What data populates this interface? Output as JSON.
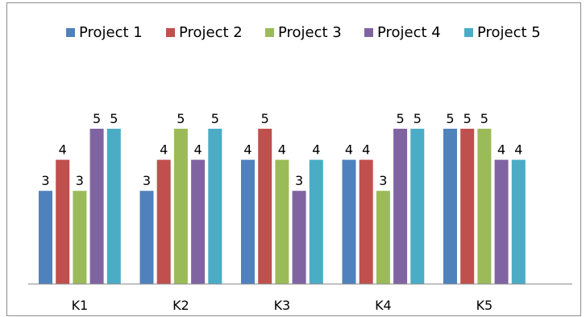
{
  "chart_data": {
    "type": "bar",
    "title": "",
    "xlabel": "",
    "ylabel": "",
    "categories": [
      "K1",
      "K2",
      "K3",
      "K4",
      "K5"
    ],
    "ylim": [
      0,
      5.5
    ],
    "grid": false,
    "legend_position": "top",
    "data_labels": true,
    "series": [
      {
        "name": "Project 1",
        "color": "#4f81bd",
        "values": [
          3,
          3,
          4,
          4,
          5
        ]
      },
      {
        "name": "Project 2",
        "color": "#c0504d",
        "values": [
          4,
          4,
          5,
          4,
          5
        ]
      },
      {
        "name": "Project 3",
        "color": "#9bbb59",
        "values": [
          3,
          5,
          4,
          3,
          5
        ]
      },
      {
        "name": "Project 4",
        "color": "#8064a2",
        "values": [
          5,
          4,
          3,
          5,
          4
        ]
      },
      {
        "name": "Project 5",
        "color": "#4bacc6",
        "values": [
          5,
          5,
          4,
          5,
          4
        ]
      }
    ]
  }
}
